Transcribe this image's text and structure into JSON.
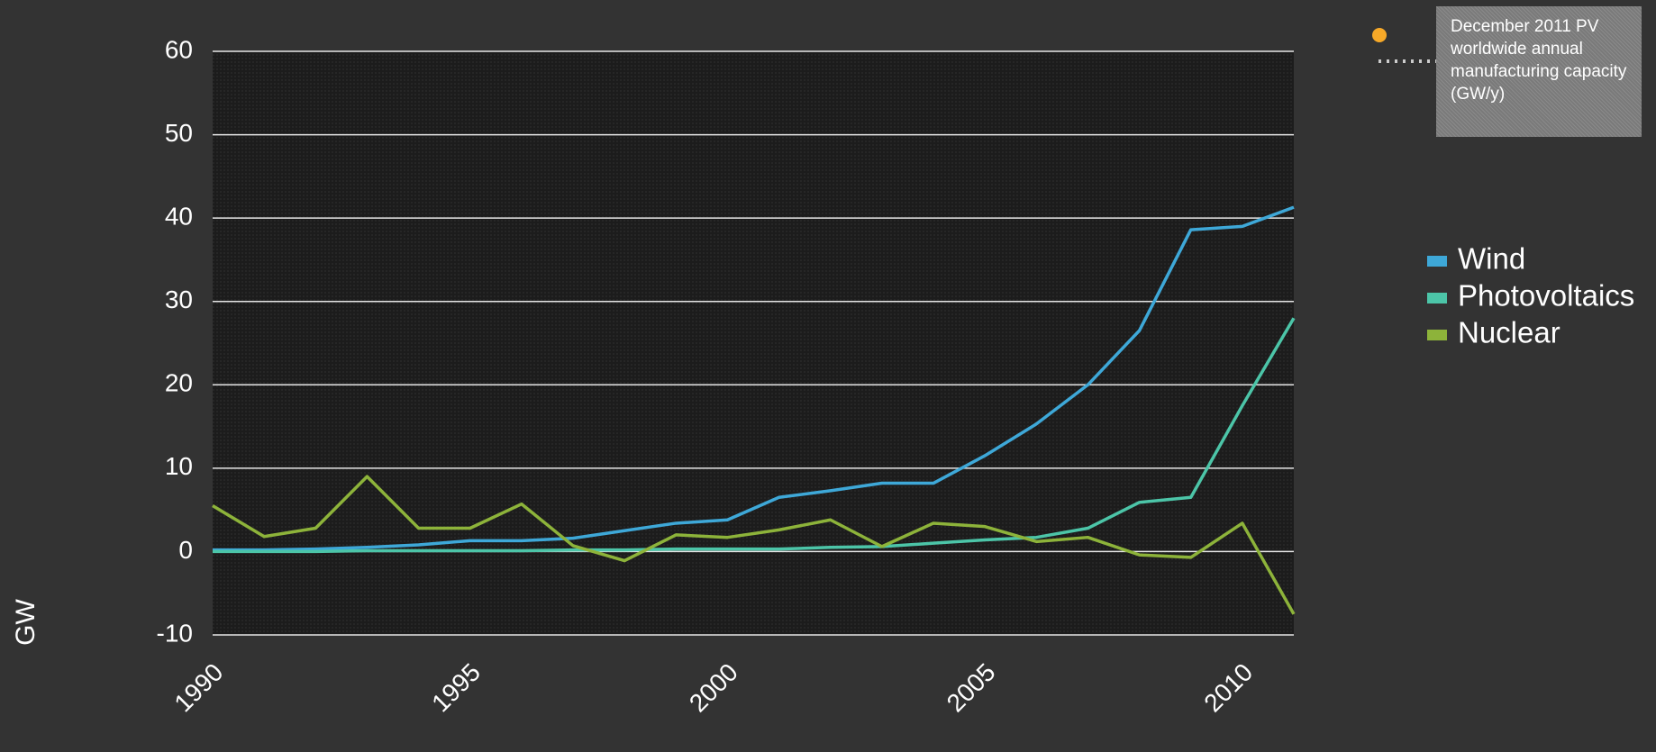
{
  "chart_data": {
    "type": "line",
    "y_label": "GW",
    "annotation": "December 2011 PV worldwide annual manufacturing capacity (GW/y)",
    "x": [
      1990,
      1991,
      1992,
      1993,
      1994,
      1995,
      1996,
      1997,
      1998,
      1999,
      2000,
      2001,
      2002,
      2003,
      2004,
      2005,
      2006,
      2007,
      2008,
      2009,
      2010,
      2011
    ],
    "xlim": [
      1990,
      2011
    ],
    "xticks": [
      1990,
      1995,
      2000,
      2005,
      2010
    ],
    "ylim": [
      -10,
      60
    ],
    "yticks": [
      -10,
      0,
      10,
      20,
      30,
      40,
      50,
      60
    ],
    "grid": true,
    "legend": "right",
    "series": [
      {
        "name": "Wind",
        "color": "#3ea8d8",
        "values": [
          0.2,
          0.2,
          0.3,
          0.5,
          0.8,
          1.3,
          1.3,
          1.6,
          2.5,
          3.4,
          3.8,
          6.5,
          7.3,
          8.2,
          8.2,
          11.5,
          15.3,
          20,
          26.5,
          38.6,
          39,
          41.3
        ]
      },
      {
        "name": "Photovoltaics",
        "color": "#4cc5a8",
        "values": [
          0,
          0,
          0,
          0.1,
          0.1,
          0.1,
          0.1,
          0.2,
          0.2,
          0.3,
          0.3,
          0.3,
          0.5,
          0.6,
          1.0,
          1.4,
          1.7,
          2.8,
          5.9,
          6.5,
          17.5,
          28
        ]
      },
      {
        "name": "Nuclear",
        "color": "#8db33a",
        "values": [
          5.5,
          1.8,
          2.8,
          9,
          2.8,
          2.8,
          5.7,
          0.7,
          -1.1,
          2,
          1.7,
          2.6,
          3.8,
          0.6,
          3.4,
          3,
          1.2,
          1.7,
          -0.4,
          -0.7,
          3.4,
          -7.5
        ]
      }
    ]
  }
}
